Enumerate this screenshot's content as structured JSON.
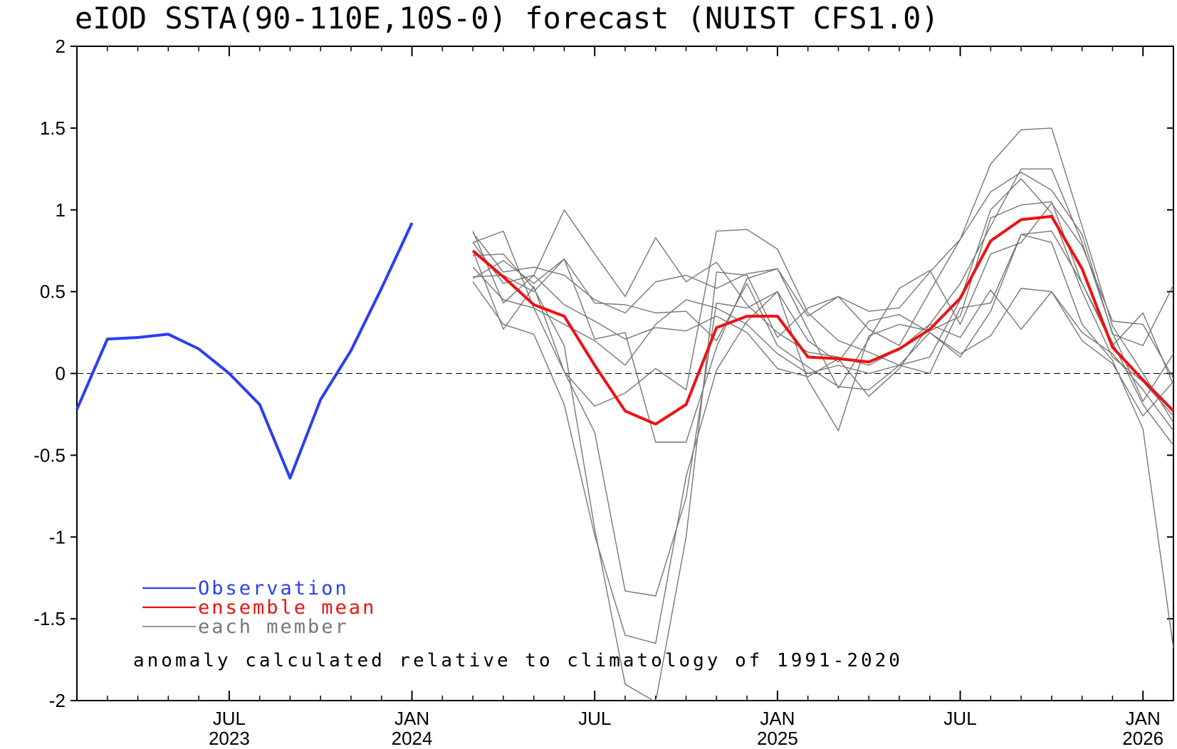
{
  "chart_data": {
    "type": "line",
    "title": "eIOD SSTA(90-110E,10S-0) forecast (NUIST CFS1.0)",
    "ylim": [
      -2,
      2
    ],
    "yticks": [
      -2,
      -1.5,
      -1,
      -0.5,
      0,
      0.5,
      1,
      1.5,
      2
    ],
    "ytick_labels": [
      "-2",
      "-1.5",
      "-1",
      "-0.5",
      "0",
      "0.5",
      "1",
      "1.5",
      "2"
    ],
    "xlim": [
      "2023-02",
      "2026-02"
    ],
    "xticks": [
      {
        "month": "2023-07",
        "line1": "JUL",
        "line2": "2023"
      },
      {
        "month": "2024-01",
        "line1": "JAN",
        "line2": "2024"
      },
      {
        "month": "2024-07",
        "line1": "JUL",
        "line2": ""
      },
      {
        "month": "2025-01",
        "line1": "JAN",
        "line2": "2025"
      },
      {
        "month": "2025-07",
        "line1": "JUL",
        "line2": ""
      },
      {
        "month": "2026-01",
        "line1": "JAN",
        "line2": "2026"
      }
    ],
    "zero_line": true,
    "grid": false,
    "legend": {
      "placement": "bottom-left",
      "entries": [
        {
          "label": "Observation",
          "color": "#2a3ff0"
        },
        {
          "label": "ensemble mean",
          "color": "#ee1111"
        },
        {
          "label": "each member",
          "color": "#777777"
        }
      ]
    },
    "annotation": "anomaly calculated relative to climatology of 1991-2020",
    "observation": {
      "name": "Observation",
      "color": "#2a3ff0",
      "x": [
        "2023-02",
        "2023-03",
        "2023-04",
        "2023-05",
        "2023-06",
        "2023-07",
        "2023-08",
        "2023-09",
        "2023-10",
        "2023-11",
        "2023-12",
        "2024-01",
        "2024-02"
      ],
      "values": [
        -0.22,
        0.21,
        0.22,
        0.24,
        0.15,
        0.0,
        -0.19,
        -0.64,
        -0.16,
        0.14,
        0.52,
        0.92,
        null
      ]
    },
    "ensemble_mean": {
      "name": "ensemble mean",
      "color": "#ee1111",
      "x": [
        "2024-03",
        "2024-04",
        "2024-05",
        "2024-06",
        "2024-07",
        "2024-08",
        "2024-09",
        "2024-10",
        "2024-11",
        "2024-12",
        "2025-01",
        "2025-02",
        "2025-03",
        "2025-04",
        "2025-05",
        "2025-06",
        "2025-07",
        "2025-08",
        "2025-09",
        "2025-10",
        "2025-11",
        "2025-12",
        "2026-01",
        "2026-02"
      ],
      "values": [
        0.75,
        0.59,
        0.42,
        0.35,
        0.05,
        -0.23,
        -0.31,
        -0.19,
        0.28,
        0.35,
        0.35,
        0.1,
        0.09,
        0.07,
        0.15,
        0.27,
        0.46,
        0.81,
        0.94,
        0.96,
        0.64,
        0.16,
        -0.04,
        -0.23
      ]
    },
    "members": {
      "name": "each member",
      "color": "#777777",
      "x": [
        "2024-03",
        "2024-04",
        "2024-05",
        "2024-06",
        "2024-07",
        "2024-08",
        "2024-09",
        "2024-10",
        "2024-11",
        "2024-12",
        "2025-01",
        "2025-02",
        "2025-03",
        "2025-04",
        "2025-05",
        "2025-06",
        "2025-07",
        "2025-08",
        "2025-09",
        "2025-10",
        "2025-11",
        "2025-12",
        "2026-01",
        "2026-02"
      ],
      "series": [
        [
          0.87,
          0.43,
          0.6,
          1.0,
          0.73,
          0.47,
          0.83,
          0.56,
          0.68,
          0.42,
          0.25,
          0.13,
          0.1,
          0.05,
          0.15,
          0.3,
          0.55,
          0.9,
          1.25,
          1.25,
          0.8,
          0.25,
          -0.17,
          0.12
        ],
        [
          0.8,
          0.87,
          0.4,
          0.01,
          -0.2,
          -0.12,
          0.03,
          -0.1,
          0.87,
          0.88,
          0.76,
          0.37,
          0.2,
          0.13,
          0.05,
          0.1,
          0.45,
          1.0,
          1.19,
          0.98,
          0.5,
          0.1,
          -0.05,
          -0.26
        ],
        [
          0.72,
          0.73,
          0.52,
          0.17,
          -0.95,
          -1.9,
          -2.05,
          -1.0,
          0.62,
          0.6,
          0.22,
          0.4,
          0.47,
          0.38,
          0.4,
          0.62,
          0.82,
          1.28,
          1.49,
          1.5,
          0.9,
          0.29,
          0.0,
          -0.3
        ],
        [
          0.58,
          0.69,
          0.55,
          0.7,
          0.21,
          0.25,
          -0.42,
          -0.42,
          0.16,
          0.58,
          0.64,
          0.27,
          -0.09,
          0.21,
          0.52,
          0.63,
          0.3,
          0.73,
          0.8,
          1.04,
          0.78,
          0.32,
          0.3,
          -0.03
        ],
        [
          0.75,
          0.27,
          0.53,
          0.01,
          -0.36,
          -1.33,
          -1.36,
          -0.76,
          0.43,
          0.4,
          0.5,
          -0.04,
          -0.35,
          0.23,
          0.3,
          0.26,
          0.35,
          0.95,
          1.03,
          1.05,
          0.55,
          0.19,
          -0.19,
          -0.44
        ],
        [
          0.86,
          0.62,
          0.65,
          0.6,
          0.45,
          0.37,
          0.56,
          0.6,
          0.52,
          0.61,
          0.64,
          0.35,
          0.47,
          0.27,
          0.17,
          0.5,
          0.82,
          1.11,
          1.23,
          1.12,
          0.85,
          0.24,
          0.17,
          0.54
        ],
        [
          0.56,
          0.3,
          0.24,
          -0.19,
          -0.99,
          -1.6,
          -1.65,
          -0.63,
          0.02,
          0.32,
          0.5,
          0.2,
          0.07,
          0.32,
          0.36,
          0.25,
          0.1,
          0.38,
          0.85,
          0.87,
          0.55,
          0.17,
          0.37,
          -0.07
        ],
        [
          0.59,
          0.6,
          0.5,
          0.7,
          0.43,
          0.42,
          0.37,
          0.38,
          0.2,
          0.55,
          0.17,
          0.04,
          -0.08,
          -0.1,
          0.05,
          0.0,
          0.4,
          0.43,
          0.85,
          0.8,
          0.3,
          0.08,
          -0.34,
          -1.68
        ],
        [
          0.8,
          0.55,
          0.6,
          0.42,
          0.32,
          0.21,
          0.28,
          0.26,
          0.35,
          0.25,
          0.03,
          -0.02,
          0.09,
          -0.14,
          0.03,
          0.3,
          0.22,
          0.51,
          0.27,
          0.5,
          0.2,
          0.06,
          -0.26,
          -0.05
        ],
        [
          0.65,
          0.45,
          0.4,
          0.3,
          0.2,
          0.05,
          0.3,
          0.45,
          0.4,
          0.3,
          0.12,
          0.0,
          0.05,
          0.0,
          0.05,
          0.25,
          0.12,
          0.23,
          0.52,
          0.5,
          0.25,
          0.12,
          -0.1,
          -0.35
        ]
      ]
    }
  }
}
